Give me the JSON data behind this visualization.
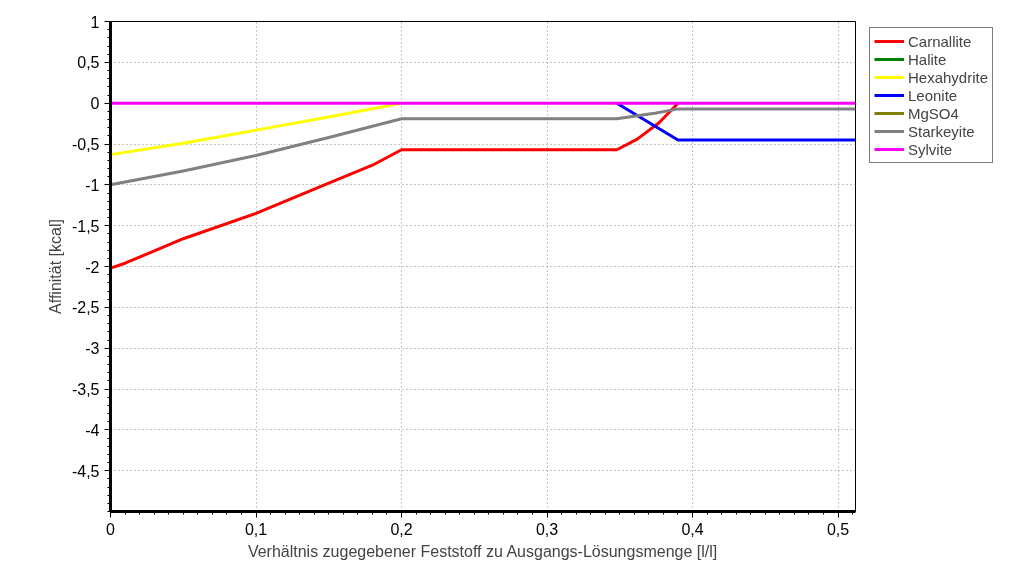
{
  "chart_data": {
    "type": "line",
    "xlabel": "Verhältnis zugegebener Feststoff zu Ausgangs-Lösungsmenge [l/l]",
    "ylabel": "Affinität [kcal]",
    "xlim": [
      0,
      0.512
    ],
    "ylim": [
      -5,
      1
    ],
    "xticks": [
      0,
      {
        "value": 0.1,
        "label": "0,1"
      },
      {
        "value": 0.2,
        "label": "0,2"
      },
      {
        "value": 0.3,
        "label": "0,3"
      },
      {
        "value": 0.4,
        "label": "0,4"
      },
      {
        "value": 0.5,
        "label": "0,5"
      }
    ],
    "yticks": [
      1,
      {
        "value": 0.5,
        "label": "0,5"
      },
      0,
      {
        "value": -0.5,
        "label": "-0,5"
      },
      -1,
      {
        "value": -1.5,
        "label": "-1,5"
      },
      -2,
      {
        "value": -2.5,
        "label": "-2,5"
      },
      -3,
      {
        "value": -3.5,
        "label": "-3,5"
      },
      -4,
      {
        "value": -4.5,
        "label": "-4,5"
      }
    ],
    "grid": true,
    "legend": "right",
    "marker": "none",
    "line_style": "solid",
    "series": [
      {
        "name": "Carnallite",
        "color": "#ff0000",
        "x": [
          0,
          0.01,
          0.05,
          0.1,
          0.15,
          0.18,
          0.2,
          0.348,
          0.362,
          0.377,
          0.39
        ],
        "values": [
          -2.02,
          -1.96,
          -1.66,
          -1.35,
          -0.98,
          -0.76,
          -0.57,
          -0.57,
          -0.44,
          -0.24,
          0
        ]
      },
      {
        "name": "Halite",
        "color": "#008000",
        "values": [
          null
        ]
      },
      {
        "name": "Hexahydrite",
        "color": "#ffff00",
        "x": [
          0,
          0.05,
          0.1,
          0.15,
          0.2
        ],
        "values": [
          -0.63,
          -0.49,
          -0.33,
          -0.17,
          0
        ]
      },
      {
        "name": "Leonite",
        "color": "#0000ff",
        "x": [
          0.348,
          0.39,
          0.512
        ],
        "values": [
          0,
          -0.45,
          -0.45
        ]
      },
      {
        "name": "MgSO4",
        "color": "#808000",
        "values": [
          null
        ]
      },
      {
        "name": "Starkeyite",
        "color": "#808080",
        "x": [
          0,
          0.05,
          0.1,
          0.15,
          0.2,
          0.348,
          0.375,
          0.39,
          0.512
        ],
        "values": [
          -1.0,
          -0.83,
          -0.64,
          -0.42,
          -0.19,
          -0.19,
          -0.12,
          -0.07,
          -0.07
        ]
      },
      {
        "name": "Sylvite",
        "color": "#ff00ff",
        "x": [
          0,
          0.512
        ],
        "values": [
          0,
          0
        ]
      }
    ]
  }
}
